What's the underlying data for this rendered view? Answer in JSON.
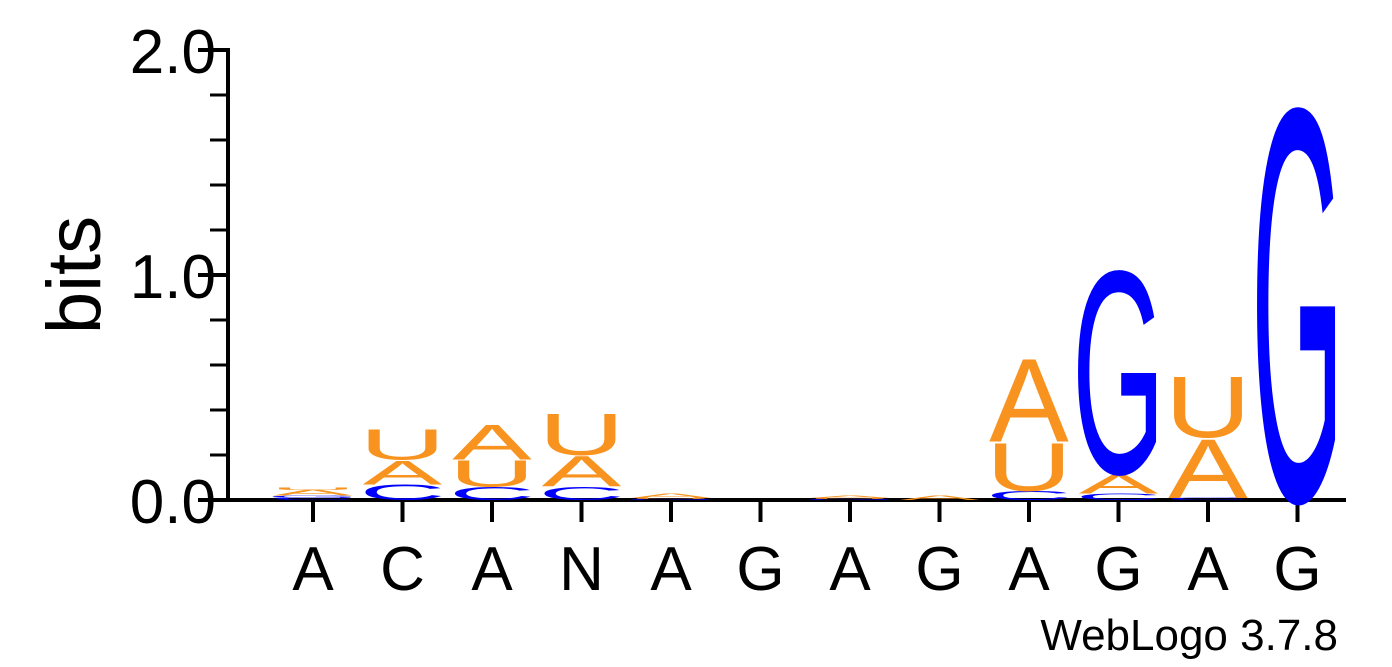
{
  "chart_data": {
    "type": "sequence-logo",
    "ylabel": "bits",
    "ylim": [
      0,
      2.0
    ],
    "y_ticks": [
      "0.0",
      "1.0",
      "2.0"
    ],
    "y_tick_values": [
      0,
      1.0,
      2.0
    ],
    "minor_tick_step": 0.2,
    "x_labels": [
      "A",
      "C",
      "A",
      "N",
      "A",
      "G",
      "A",
      "G",
      "A",
      "G",
      "A",
      "G"
    ],
    "credit": "WebLogo 3.7.8",
    "colors": {
      "A": "#f7931e",
      "U": "#f7931e",
      "G": "#0000ff",
      "C": "#0000ff"
    },
    "positions": [
      {
        "x_label": "A",
        "stack": [
          {
            "letter": "C",
            "bits": 0.01
          },
          {
            "letter": "G",
            "bits": 0.01
          },
          {
            "letter": "A",
            "bits": 0.025
          },
          {
            "letter": "U",
            "bits": 0.01
          }
        ]
      },
      {
        "x_label": "C",
        "stack": [
          {
            "letter": "C",
            "bits": 0.07
          },
          {
            "letter": "A",
            "bits": 0.11
          },
          {
            "letter": "U",
            "bits": 0.14
          }
        ]
      },
      {
        "x_label": "A",
        "stack": [
          {
            "letter": "C",
            "bits": 0.06
          },
          {
            "letter": "U",
            "bits": 0.12
          },
          {
            "letter": "A",
            "bits": 0.16
          }
        ]
      },
      {
        "x_label": "N",
        "stack": [
          {
            "letter": "C",
            "bits": 0.06
          },
          {
            "letter": "A",
            "bits": 0.14
          },
          {
            "letter": "U",
            "bits": 0.19
          }
        ]
      },
      {
        "x_label": "A",
        "stack": [
          {
            "letter": "G",
            "bits": 0.005
          },
          {
            "letter": "U",
            "bits": 0.005
          },
          {
            "letter": "A",
            "bits": 0.02
          }
        ]
      },
      {
        "x_label": "G",
        "stack": [
          {
            "letter": "A",
            "bits": 0.0
          }
        ]
      },
      {
        "x_label": "A",
        "stack": [
          {
            "letter": "G",
            "bits": 0.005
          },
          {
            "letter": "U",
            "bits": 0.005
          },
          {
            "letter": "A",
            "bits": 0.012
          }
        ]
      },
      {
        "x_label": "G",
        "stack": [
          {
            "letter": "A",
            "bits": 0.02
          }
        ]
      },
      {
        "x_label": "A",
        "stack": [
          {
            "letter": "C",
            "bits": 0.04
          },
          {
            "letter": "U",
            "bits": 0.22
          },
          {
            "letter": "A",
            "bits": 0.38
          }
        ]
      },
      {
        "x_label": "G",
        "stack": [
          {
            "letter": "C",
            "bits": 0.03
          },
          {
            "letter": "A",
            "bits": 0.09
          },
          {
            "letter": "G",
            "bits": 0.93
          }
        ]
      },
      {
        "x_label": "A",
        "stack": [
          {
            "letter": "C",
            "bits": 0.01
          },
          {
            "letter": "A",
            "bits": 0.27
          },
          {
            "letter": "U",
            "bits": 0.28
          }
        ]
      },
      {
        "x_label": "G",
        "stack": [
          {
            "letter": "G",
            "bits": 1.8
          }
        ]
      }
    ]
  }
}
